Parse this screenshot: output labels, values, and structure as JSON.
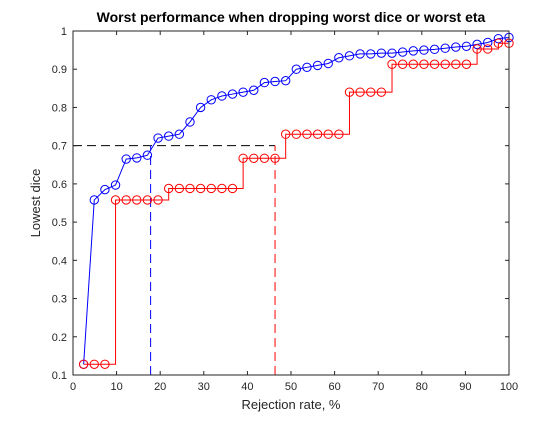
{
  "chart_data": {
    "type": "line",
    "title": "Worst performance when dropping worst dice or worst eta",
    "xlabel": "Rejection rate, %",
    "ylabel": "Lowest dice",
    "xlim": [
      0,
      100
    ],
    "ylim": [
      0.1,
      1
    ],
    "xticks": [
      0,
      10,
      20,
      30,
      40,
      50,
      60,
      70,
      80,
      90,
      100
    ],
    "yticks": [
      0.1,
      0.2,
      0.3,
      0.4,
      0.5,
      0.6,
      0.7,
      0.8,
      0.9,
      1
    ],
    "grid": false,
    "legend": "none",
    "x": [
      2.44,
      4.88,
      7.32,
      9.76,
      12.2,
      14.63,
      17.07,
      19.51,
      21.95,
      24.39,
      26.83,
      29.27,
      31.71,
      34.15,
      36.59,
      39.02,
      41.46,
      43.9,
      46.34,
      48.78,
      51.22,
      53.66,
      56.1,
      58.54,
      60.98,
      63.41,
      65.85,
      68.29,
      70.73,
      73.17,
      75.61,
      78.05,
      80.49,
      82.93,
      85.37,
      87.8,
      90.24,
      92.68,
      95.12,
      97.56,
      100
    ],
    "series": [
      {
        "color": "#0000ff",
        "style": "step-connected",
        "values": [
          0.128,
          0.558,
          0.585,
          0.597,
          0.665,
          0.668,
          0.675,
          0.72,
          0.725,
          0.73,
          0.762,
          0.8,
          0.82,
          0.83,
          0.835,
          0.84,
          0.845,
          0.865,
          0.868,
          0.87,
          0.9,
          0.905,
          0.91,
          0.915,
          0.93,
          0.935,
          0.94,
          0.94,
          0.942,
          0.942,
          0.945,
          0.948,
          0.95,
          0.952,
          0.955,
          0.958,
          0.96,
          0.965,
          0.97,
          0.98,
          0.983
        ]
      },
      {
        "color": "#ff0000",
        "style": "stairs",
        "values": [
          0.128,
          0.128,
          0.128,
          0.558,
          0.558,
          0.558,
          0.558,
          0.558,
          0.588,
          0.588,
          0.588,
          0.588,
          0.588,
          0.588,
          0.588,
          0.667,
          0.667,
          0.667,
          0.667,
          0.73,
          0.73,
          0.73,
          0.73,
          0.73,
          0.73,
          0.84,
          0.84,
          0.84,
          0.84,
          0.913,
          0.913,
          0.913,
          0.913,
          0.913,
          0.913,
          0.913,
          0.913,
          0.953,
          0.953,
          0.968,
          0.968
        ]
      }
    ],
    "reference_lines": [
      {
        "color": "#000000",
        "style": "dashed",
        "from": [
          0,
          0.7
        ],
        "to": [
          46.34,
          0.7
        ]
      },
      {
        "color": "#0000ff",
        "style": "dashed",
        "from": [
          17.8,
          0.1
        ],
        "to": [
          17.8,
          0.7
        ]
      },
      {
        "color": "#ff0000",
        "style": "dashed",
        "from": [
          46.34,
          0.1
        ],
        "to": [
          46.34,
          0.7
        ]
      }
    ]
  },
  "colors": {
    "axis": "#262626",
    "blue": "#0000ff",
    "red": "#ff0000",
    "reference": "#000000"
  }
}
